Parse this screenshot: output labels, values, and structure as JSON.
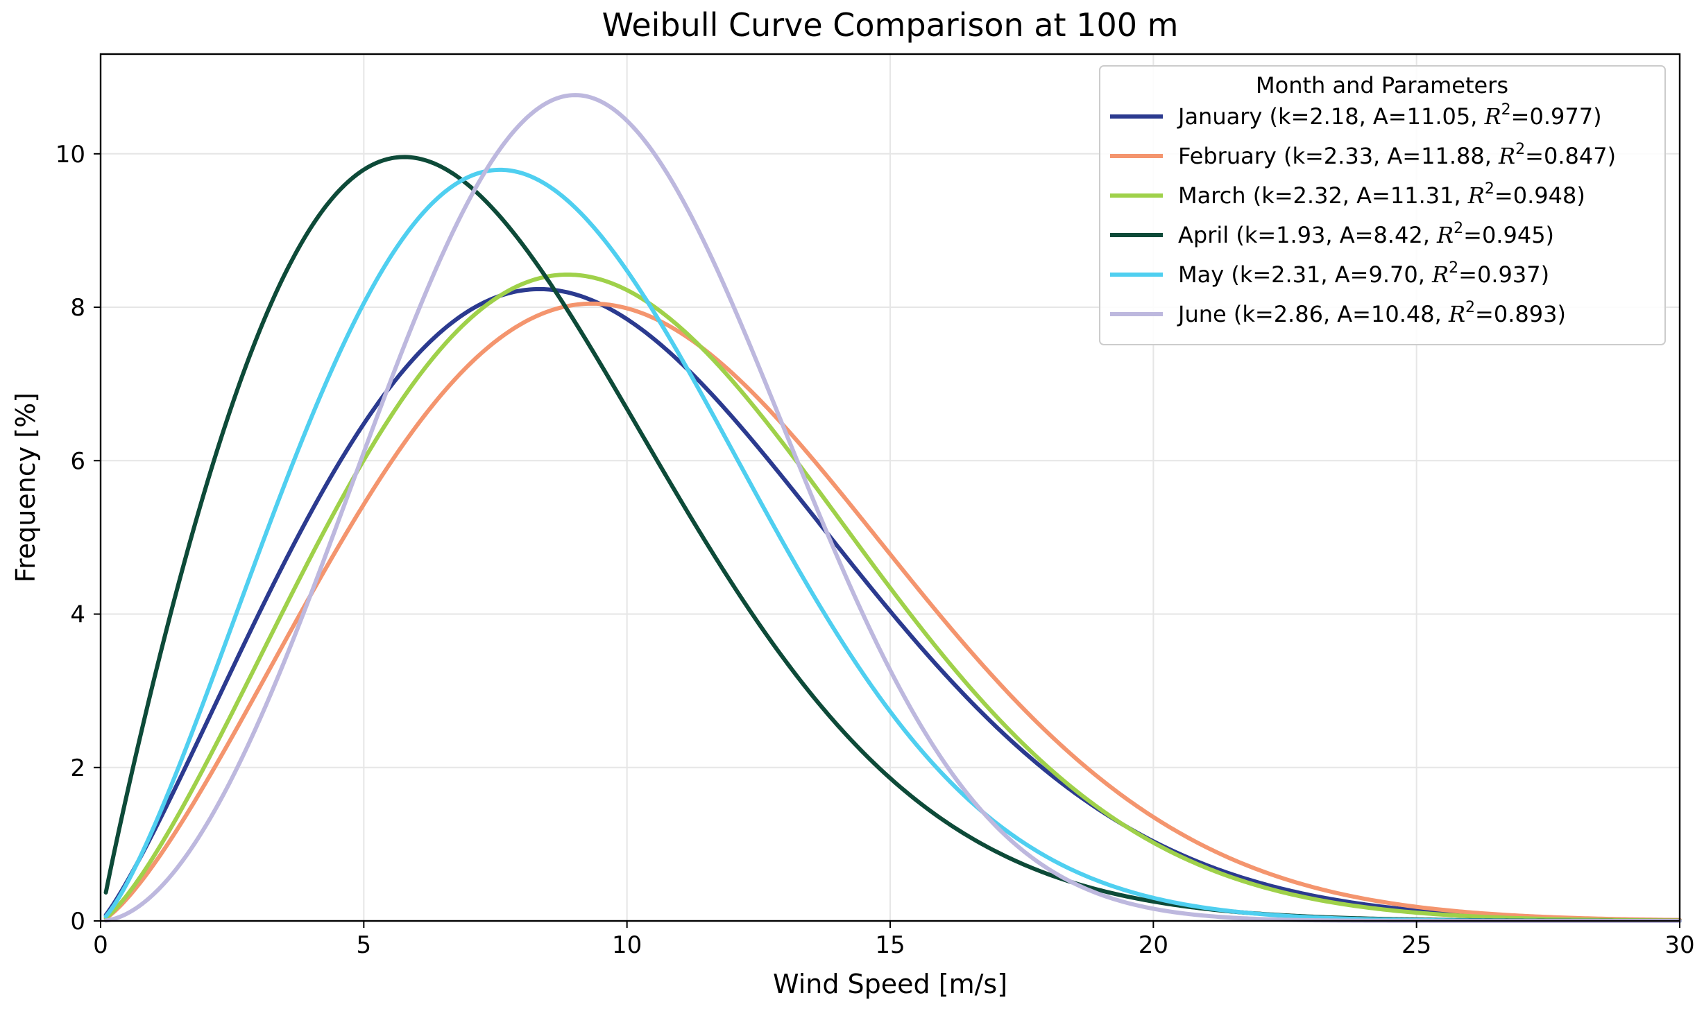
{
  "chart_data": {
    "type": "line",
    "title": "Weibull Curve Comparison at 100 m",
    "xlabel": "Wind Speed [m/s]",
    "ylabel": "Frequency [%]",
    "xlim": [
      0,
      30
    ],
    "ylim": [
      0,
      11.3
    ],
    "xticks": [
      0,
      5,
      10,
      15,
      20,
      25,
      30
    ],
    "yticks": [
      0,
      2,
      4,
      6,
      8,
      10
    ],
    "grid": true,
    "legend": {
      "title": "Month and Parameters",
      "placement": "top-right"
    },
    "series": [
      {
        "name": "January",
        "params_label": "(k=2.18, A=11.05, ",
        "r2_value": "=0.977)",
        "k": 2.18,
        "A": 11.05,
        "r2": 0.977,
        "color": "#2b3a8f"
      },
      {
        "name": "February",
        "params_label": "(k=2.33, A=11.88, ",
        "r2_value": "=0.847)",
        "k": 2.33,
        "A": 11.88,
        "r2": 0.847,
        "color": "#f4956e"
      },
      {
        "name": "March",
        "params_label": "(k=2.32, A=11.31, ",
        "r2_value": "=0.948)",
        "k": 2.32,
        "A": 11.31,
        "r2": 0.948,
        "color": "#9fd14a"
      },
      {
        "name": "April",
        "params_label": "(k=1.93, A=8.42, ",
        "r2_value": "=0.945)",
        "k": 1.93,
        "A": 8.42,
        "r2": 0.945,
        "color": "#0d4a38"
      },
      {
        "name": "May",
        "params_label": "(k=2.31, A=9.70, ",
        "r2_value": "=0.937)",
        "k": 2.31,
        "A": 9.7,
        "r2": 0.937,
        "color": "#4fcff0"
      },
      {
        "name": "June",
        "params_label": "(k=2.86, A=10.48, ",
        "r2_value": "=0.893)",
        "k": 2.86,
        "A": 10.48,
        "r2": 0.893,
        "color": "#bdb8de"
      }
    ],
    "r2_symbol": "R",
    "r2_superscript": "2",
    "x_start": 0.1,
    "x_end": 30
  }
}
